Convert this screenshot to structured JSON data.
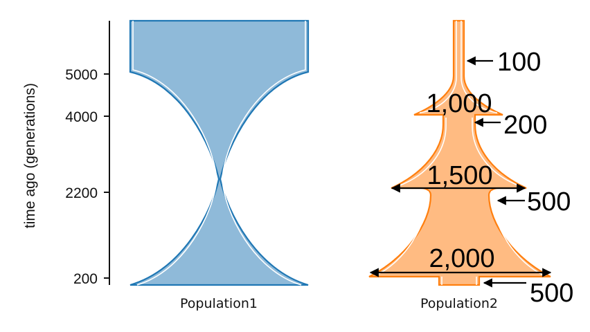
{
  "axis": {
    "title": "time ago (generations)",
    "ticks": [
      "5000",
      "4000",
      "2200",
      "200"
    ]
  },
  "populations": [
    {
      "name": "Population1",
      "fill": "#8fbad9",
      "stroke": "#1f77b4"
    },
    {
      "name": "Population2",
      "fill": "#ffbb82",
      "stroke": "#ff7f0e"
    }
  ],
  "pulse_labels": [
    "1,000",
    "1,500",
    "2,000"
  ],
  "size_labels": [
    "100",
    "200",
    "500",
    "500"
  ]
}
